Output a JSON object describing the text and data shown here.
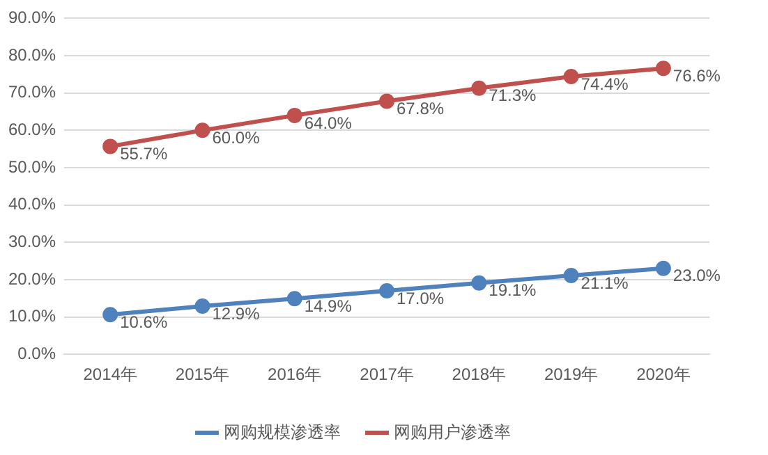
{
  "chart_data": {
    "type": "line",
    "categories": [
      "2014年",
      "2015年",
      "2016年",
      "2017年",
      "2018年",
      "2019年",
      "2020年"
    ],
    "series": [
      {
        "name": "网购规模渗透率",
        "color": "#4f81bd",
        "values": [
          10.6,
          12.9,
          14.9,
          17.0,
          19.1,
          21.1,
          23.0
        ],
        "value_labels": [
          "10.6%",
          "12.9%",
          "14.9%",
          "17.0%",
          "19.1%",
          "21.1%",
          "23.0%"
        ]
      },
      {
        "name": "网购用户渗透率",
        "color": "#c0504d",
        "values": [
          55.7,
          60.0,
          64.0,
          67.8,
          71.3,
          74.4,
          76.6
        ],
        "value_labels": [
          "55.7%",
          "60.0%",
          "64.0%",
          "67.8%",
          "71.3%",
          "74.4%",
          "76.6%"
        ]
      }
    ],
    "ylim": [
      0,
      90
    ],
    "yticks": [
      {
        "value": 0,
        "label": "0.0%"
      },
      {
        "value": 10,
        "label": "10.0%"
      },
      {
        "value": 20,
        "label": "20.0%"
      },
      {
        "value": 30,
        "label": "30.0%"
      },
      {
        "value": 40,
        "label": "40.0%"
      },
      {
        "value": 50,
        "label": "50.0%"
      },
      {
        "value": 60,
        "label": "60.0%"
      },
      {
        "value": 70,
        "label": "70.0%"
      },
      {
        "value": 80,
        "label": "80.0%"
      },
      {
        "value": 90,
        "label": "90.0%"
      }
    ],
    "grid": "y",
    "legend": "bottom",
    "marker": "circle",
    "line_style": "solid"
  }
}
